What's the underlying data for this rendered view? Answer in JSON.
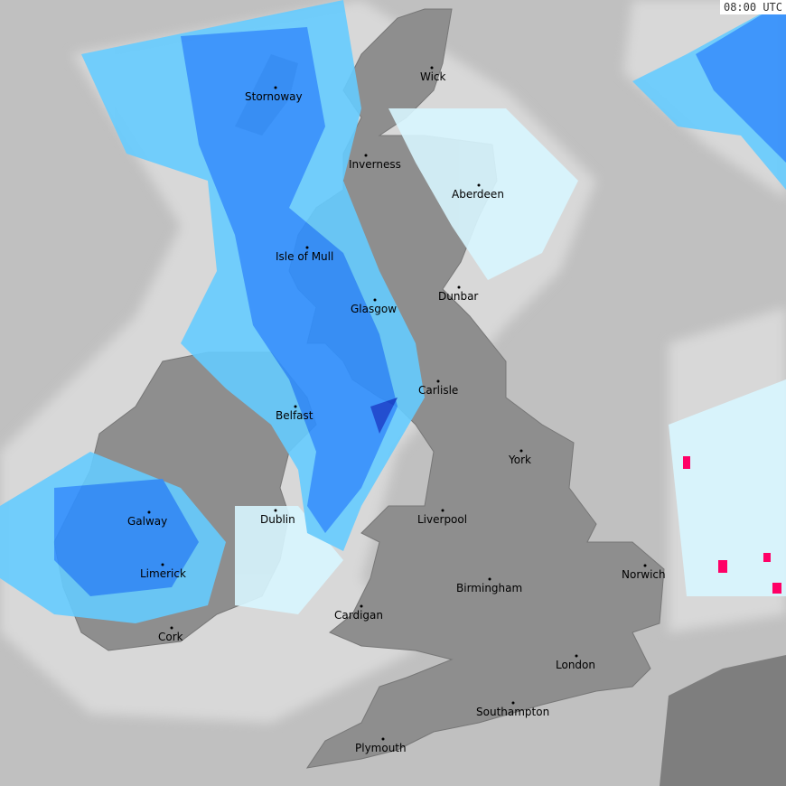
{
  "timestamp": "08:00 UTC",
  "colors": {
    "sea": "#c0c0c0",
    "land": "#8e8e8e",
    "light_precip": "#dcdcdc",
    "very_light_rain": "#d8f6ff",
    "light_rain": "#66ccff",
    "moderate_rain": "#2f8fff",
    "heavy_rain": "#1040d0",
    "intense": "#ff0066"
  },
  "places": [
    {
      "name": "Wick"
    },
    {
      "name": "Stornoway"
    },
    {
      "name": "Inverness"
    },
    {
      "name": "Aberdeen"
    },
    {
      "name": "Isle of Mull"
    },
    {
      "name": "Dunbar"
    },
    {
      "name": "Glasgow"
    },
    {
      "name": "Carlisle"
    },
    {
      "name": "Belfast"
    },
    {
      "name": "York"
    },
    {
      "name": "Galway"
    },
    {
      "name": "Dublin"
    },
    {
      "name": "Liverpool"
    },
    {
      "name": "Limerick"
    },
    {
      "name": "Norwich"
    },
    {
      "name": "Birmingham"
    },
    {
      "name": "Cardigan"
    },
    {
      "name": "Cork"
    },
    {
      "name": "London"
    },
    {
      "name": "Southampton"
    },
    {
      "name": "Plymouth"
    }
  ]
}
